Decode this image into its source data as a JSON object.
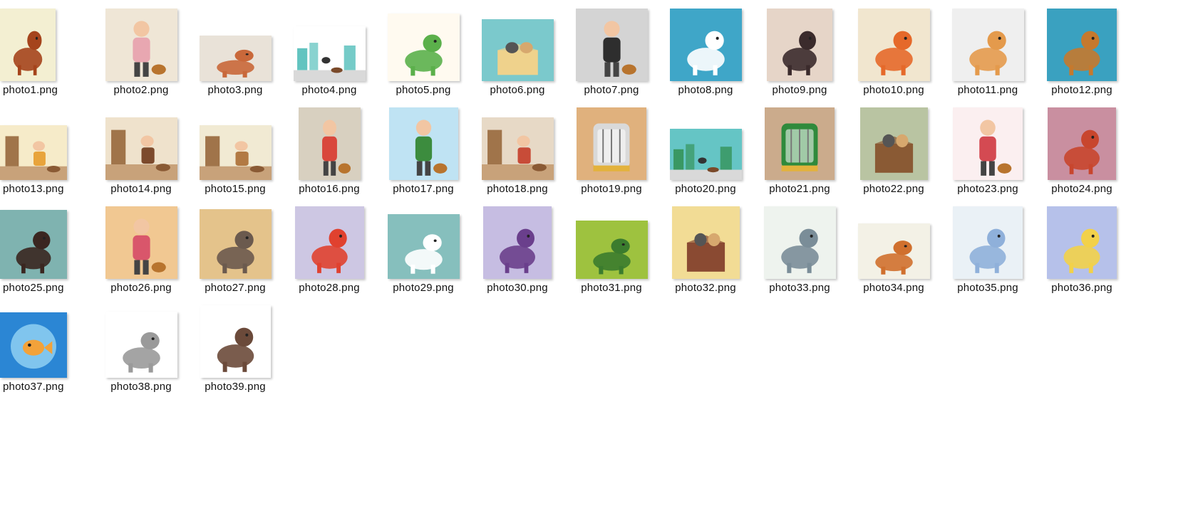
{
  "window": {
    "view": "large-icons"
  },
  "files": [
    {
      "name": "photo1.png",
      "bg": "#f3efd2",
      "icon": "dog-icon",
      "accent": "#a5441c",
      "w": 78,
      "h": 102,
      "shape": "animal"
    },
    {
      "name": "photo2.png",
      "bg": "#efe6d6",
      "icon": "girl-with-puppy-icon",
      "accent": "#e8a7b1",
      "w": 101,
      "h": 102,
      "shape": "person"
    },
    {
      "name": "photo3.png",
      "bg": "#e9e2d8",
      "icon": "street-dog-icon",
      "accent": "#c9683a",
      "w": 101,
      "h": 64,
      "shape": "animal"
    },
    {
      "name": "photo4.png",
      "bg": "#ffffff",
      "icon": "dog-walker-icon",
      "accent": "#3bb5b0",
      "w": 101,
      "h": 77,
      "shape": "city"
    },
    {
      "name": "photo5.png",
      "bg": "#fffaf0",
      "icon": "thank-you-dog-icon",
      "accent": "#5bb04b",
      "w": 101,
      "h": 95,
      "shape": "animal"
    },
    {
      "name": "photo6.png",
      "bg": "#7bc9cc",
      "icon": "cats-in-box-icon",
      "accent": "#efd28c",
      "w": 101,
      "h": 87,
      "shape": "box"
    },
    {
      "name": "photo7.png",
      "bg": "#d4d4d4",
      "icon": "fetch-dog-icon",
      "accent": "#2e2e2e",
      "w": 101,
      "h": 102,
      "shape": "person"
    },
    {
      "name": "photo8.png",
      "bg": "#3fa6c8",
      "icon": "dalmatian-icon",
      "accent": "#ffffff",
      "w": 101,
      "h": 102,
      "shape": "animal"
    },
    {
      "name": "photo9.png",
      "bg": "#e6d5c8",
      "icon": "black-cat-icon",
      "accent": "#3b2b2c",
      "w": 92,
      "h": 102,
      "shape": "animal"
    },
    {
      "name": "photo10.png",
      "bg": "#f1e6cf",
      "icon": "orange-cat-icon",
      "accent": "#e5692a",
      "w": 101,
      "h": 102,
      "shape": "animal"
    },
    {
      "name": "photo11.png",
      "bg": "#efefef",
      "icon": "corgi-icon",
      "accent": "#e49a4c",
      "w": 101,
      "h": 102,
      "shape": "animal"
    },
    {
      "name": "photo12.png",
      "bg": "#3aa1c0",
      "icon": "beagle-icon",
      "accent": "#c5792e",
      "w": 98,
      "h": 102,
      "shape": "animal"
    },
    {
      "name": "photo13.png",
      "bg": "#f6ebc9",
      "icon": "cat-waiting-icon",
      "accent": "#e8a43c",
      "w": 94,
      "h": 77,
      "shape": "room"
    },
    {
      "name": "photo14.png",
      "bg": "#efe2cc",
      "icon": "dining-dalmatian-icon",
      "accent": "#7c4a2c",
      "w": 101,
      "h": 88,
      "shape": "room"
    },
    {
      "name": "photo15.png",
      "bg": "#f1ead3",
      "icon": "dog-waiting-icon",
      "accent": "#b27a44",
      "w": 101,
      "h": 77,
      "shape": "room"
    },
    {
      "name": "photo16.png",
      "bg": "#d8d0c0",
      "icon": "grandma-cat-icon",
      "accent": "#d9473c",
      "w": 87,
      "h": 102,
      "shape": "person"
    },
    {
      "name": "photo17.png",
      "bg": "#bfe3f3",
      "icon": "boy-dog-park-icon",
      "accent": "#3c8c3e",
      "w": 97,
      "h": 102,
      "shape": "person"
    },
    {
      "name": "photo18.png",
      "bg": "#e7d9c6",
      "icon": "kitchen-dog-icon",
      "accent": "#c84c38",
      "w": 101,
      "h": 88,
      "shape": "room"
    },
    {
      "name": "photo19.png",
      "bg": "#e0b17d",
      "icon": "cat-carrier-icon",
      "accent": "#d9d9d9",
      "w": 98,
      "h": 102,
      "shape": "carrier"
    },
    {
      "name": "photo20.png",
      "bg": "#65c5c5",
      "icon": "beach-dog-icon",
      "accent": "#2e8c4a",
      "w": 101,
      "h": 72,
      "shape": "city"
    },
    {
      "name": "photo21.png",
      "bg": "#cbab8c",
      "icon": "dog-carrier-icon",
      "accent": "#2f8a3c",
      "w": 98,
      "h": 102,
      "shape": "carrier"
    },
    {
      "name": "photo22.png",
      "bg": "#b9c4a2",
      "icon": "cat-in-bag-icon",
      "accent": "#8a5a34",
      "w": 95,
      "h": 102,
      "shape": "box"
    },
    {
      "name": "photo23.png",
      "bg": "#fbeff0",
      "icon": "woman-chihuahua-icon",
      "accent": "#d44a52",
      "w": 98,
      "h": 102,
      "shape": "person"
    },
    {
      "name": "photo24.png",
      "bg": "#c98fa0",
      "icon": "hen-icon",
      "accent": "#c8462e",
      "w": 96,
      "h": 102,
      "shape": "animal"
    },
    {
      "name": "photo25.png",
      "bg": "#7fb3b0",
      "icon": "dachshund-icon",
      "accent": "#3a2620",
      "w": 94,
      "h": 97,
      "shape": "animal"
    },
    {
      "name": "photo26.png",
      "bg": "#f1c892",
      "icon": "woman-walking-dogs-icon",
      "accent": "#d9566b",
      "w": 101,
      "h": 102,
      "shape": "person"
    },
    {
      "name": "photo27.png",
      "bg": "#e4c38b",
      "icon": "wheelchair-cat-icon",
      "accent": "#6b5a4e",
      "w": 101,
      "h": 98,
      "shape": "animal"
    },
    {
      "name": "photo28.png",
      "bg": "#cdc7e3",
      "icon": "super-dog-icon",
      "accent": "#e0412f",
      "w": 97,
      "h": 102,
      "shape": "animal"
    },
    {
      "name": "photo29.png",
      "bg": "#86bfbd",
      "icon": "dalmatian-digging-icon",
      "accent": "#ffffff",
      "w": 101,
      "h": 91,
      "shape": "animal"
    },
    {
      "name": "photo30.png",
      "bg": "#c6bde2",
      "icon": "super-cat-icon",
      "accent": "#6a3f8c",
      "w": 96,
      "h": 102,
      "shape": "animal"
    },
    {
      "name": "photo31.png",
      "bg": "#9ec23f",
      "icon": "turtle-icon",
      "accent": "#3b7c2e",
      "w": 101,
      "h": 82,
      "shape": "animal"
    },
    {
      "name": "photo32.png",
      "bg": "#f2dc95",
      "icon": "maltese-in-bag-icon",
      "accent": "#8a4a32",
      "w": 95,
      "h": 102,
      "shape": "box"
    },
    {
      "name": "photo33.png",
      "bg": "#eef3ee",
      "icon": "pigeon-icon",
      "accent": "#7a8d98",
      "w": 101,
      "h": 102,
      "shape": "animal"
    },
    {
      "name": "photo34.png",
      "bg": "#f3f1e6",
      "icon": "dog-and-cat-icon",
      "accent": "#d0702e",
      "w": 101,
      "h": 78,
      "shape": "animal"
    },
    {
      "name": "photo35.png",
      "bg": "#eaf1f6",
      "icon": "dog-dreaming-bone-icon",
      "accent": "#8fb0da",
      "w": 98,
      "h": 102,
      "shape": "animal"
    },
    {
      "name": "photo36.png",
      "bg": "#b6c1ea",
      "icon": "cockatiel-icon",
      "accent": "#f2d14a",
      "w": 98,
      "h": 102,
      "shape": "animal"
    },
    {
      "name": "photo37.png",
      "bg": "#2b86d4",
      "icon": "goldfish-bowl-icon",
      "accent": "#f2a23a",
      "w": 94,
      "h": 92,
      "shape": "fishbowl"
    },
    {
      "name": "photo38.png",
      "bg": "#ffffff",
      "icon": "husky-fleas-icon",
      "accent": "#9a9a9a",
      "w": 101,
      "h": 93,
      "shape": "animal"
    },
    {
      "name": "photo39.png",
      "bg": "#ffffff",
      "icon": "siamese-cat-fleas-icon",
      "accent": "#6b4a3a",
      "w": 99,
      "h": 102,
      "shape": "animal"
    }
  ]
}
